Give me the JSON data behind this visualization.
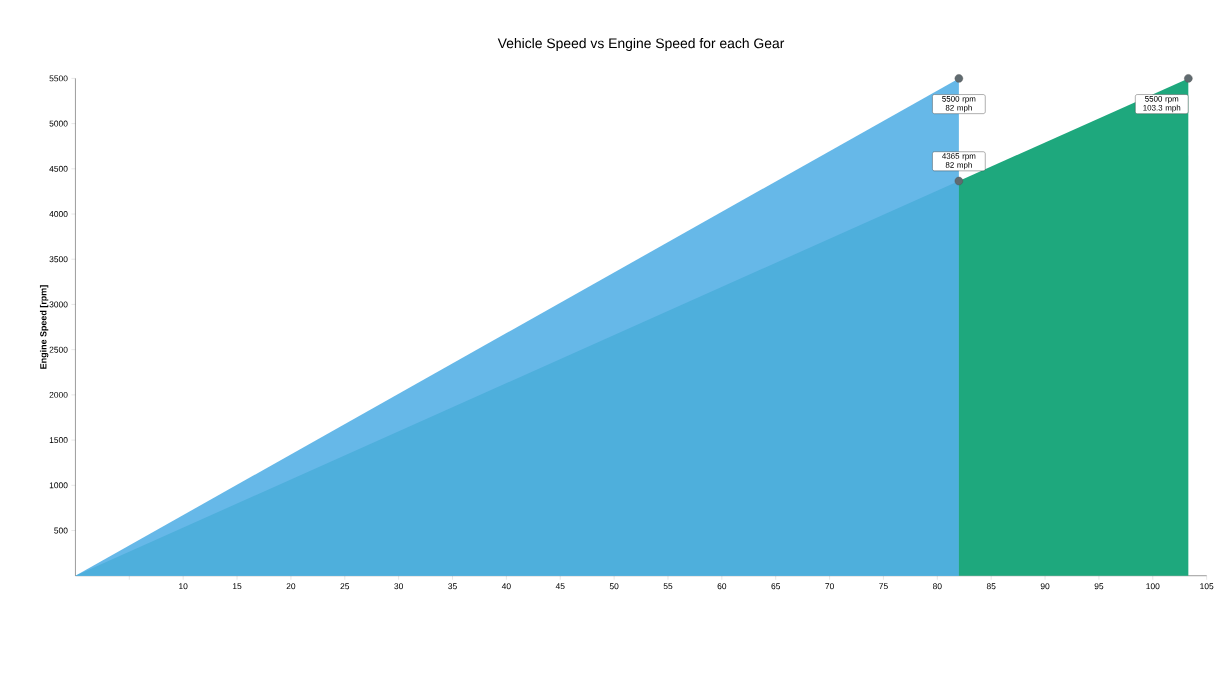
{
  "chart_data": {
    "type": "area",
    "title": "Vehicle Speed vs Engine Speed for each Gear",
    "ylabel": "Engine Speed [rpm]",
    "xlim": [
      0,
      105
    ],
    "ylim": [
      0,
      5500
    ],
    "xticks": [
      {
        "value": 5,
        "label": null
      },
      10,
      15,
      20,
      25,
      30,
      35,
      40,
      45,
      50,
      55,
      60,
      65,
      70,
      75,
      80,
      85,
      90,
      95,
      100,
      105
    ],
    "yticks": [
      500,
      1000,
      1500,
      2000,
      2500,
      3000,
      3500,
      4000,
      4500,
      5000,
      5500
    ],
    "series": [
      {
        "color": "#66b8e8",
        "x": [
          0,
          82
        ],
        "values": [
          0,
          5500
        ]
      },
      {
        "color": "#4eafdc",
        "x": [
          0,
          82
        ],
        "values": [
          0,
          4365
        ]
      },
      {
        "color": "#1ea87d",
        "x": [
          82,
          103.3
        ],
        "values": [
          4365,
          5500
        ]
      },
      {
        "type": "scatter",
        "color": "#606b70",
        "marker": "circle",
        "x": [
          82,
          82,
          103.3
        ],
        "values": [
          5500,
          4365,
          5500
        ]
      }
    ],
    "annotations": [
      "5500 rpm 82 mph",
      "4365 rpm 82 mph",
      "5500 rpm 103.3 mph"
    ],
    "grid": false,
    "legend": false
  }
}
